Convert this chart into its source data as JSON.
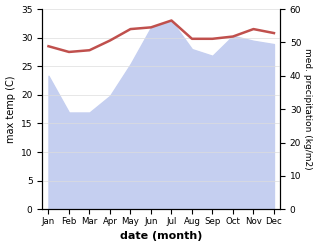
{
  "months": [
    "Jan",
    "Feb",
    "Mar",
    "Apr",
    "May",
    "Jun",
    "Jul",
    "Aug",
    "Sep",
    "Oct",
    "Nov",
    "Dec"
  ],
  "x": [
    0,
    1,
    2,
    3,
    4,
    5,
    6,
    7,
    8,
    9,
    10,
    11
  ],
  "temp_max": [
    28.5,
    27.5,
    27.8,
    29.5,
    31.5,
    31.8,
    33.0,
    29.8,
    29.8,
    30.2,
    31.5,
    30.8
  ],
  "precipitation": [
    40.0,
    29.0,
    29.0,
    34.0,
    43.5,
    54.5,
    56.5,
    48.0,
    46.0,
    52.0,
    50.5,
    49.5
  ],
  "temp_color": "#c0504d",
  "precip_fill_color": "#c5cff0",
  "temp_ylim": [
    0,
    35
  ],
  "precip_ylim": [
    0,
    60
  ],
  "temp_yticks": [
    0,
    5,
    10,
    15,
    20,
    25,
    30,
    35
  ],
  "precip_yticks": [
    0,
    10,
    20,
    30,
    40,
    50,
    60
  ],
  "xlabel": "date (month)",
  "ylabel_left": "max temp (C)",
  "ylabel_right": "med. precipitation (kg/m2)",
  "background_color": "#ffffff",
  "grid_color": "#dddddd"
}
